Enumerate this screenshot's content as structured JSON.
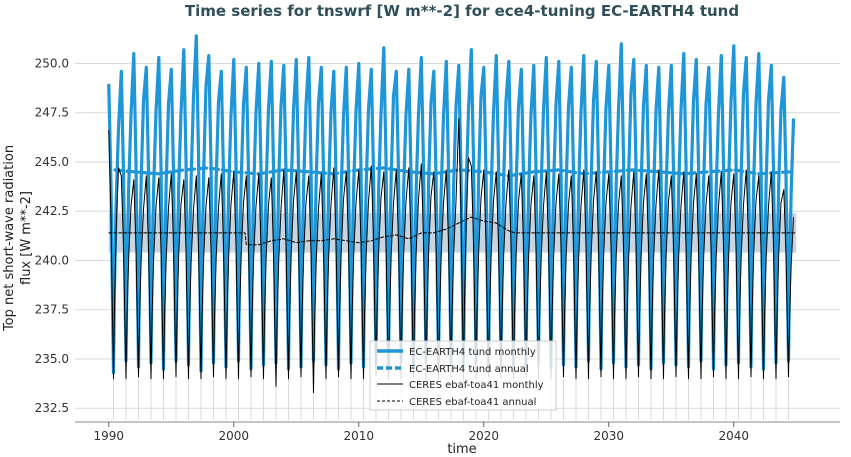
{
  "chart_data": {
    "type": "line",
    "title": "Time series for tnswrf [W m**-2] for ece4-tuning EC-EARTH4 tund",
    "xlabel": "time",
    "ylabel_lines": [
      "Top net short-wave radiation",
      "flux [W m**-2]"
    ],
    "xlim": [
      1987.3,
      2048.5
    ],
    "ylim": [
      231.8,
      251.7
    ],
    "x_ticks": [
      1990,
      2000,
      2010,
      2020,
      2030,
      2040
    ],
    "x_tick_labels": [
      "1990",
      "2000",
      "2010",
      "2020",
      "2030",
      "2040"
    ],
    "y_ticks": [
      232.5,
      235.0,
      237.5,
      240.0,
      242.5,
      245.0,
      247.5,
      250.0
    ],
    "y_tick_labels": [
      "232.5",
      "235.0",
      "237.5",
      "240.0",
      "242.5",
      "245.0",
      "247.5",
      "250.0"
    ],
    "grid": "horizontal",
    "legend_position": "bottom-center",
    "colors": {
      "model": "#1f96d8",
      "obs": "#000000",
      "band": "#b7c6d3",
      "grid": "#d7dadd",
      "title": "#2f4f5a"
    },
    "series": [
      {
        "name": "EC-EARTH4 tund monthly",
        "style": "thick-solid",
        "x_start": 1990.0,
        "x_end": 2045.0,
        "seasonal_cycle": {
          "period_years": 1,
          "annual_peaks": [
            248.9,
            249.6,
            250.5,
            249.8,
            250.3,
            249.7,
            250.7,
            251.4,
            250.4,
            249.6,
            250.2,
            249.8,
            250.0,
            250.1,
            249.9,
            250.2,
            250.3,
            249.8,
            249.6,
            249.8,
            250.0,
            249.7,
            250.8,
            249.6,
            249.7,
            250.3,
            249.6,
            250.1,
            249.9,
            250.7,
            249.8,
            250.4,
            250.1,
            249.7,
            249.9,
            250.3,
            250.1,
            249.8,
            250.4,
            250.1,
            249.9,
            251.0,
            250.2,
            249.9,
            249.8,
            249.9,
            250.5,
            250.2,
            249.8,
            250.4,
            250.9,
            250.3,
            250.5,
            249.9,
            249.3
          ],
          "annual_troughs": [
            234.3,
            234.9,
            234.6,
            234.8,
            234.5,
            234.9,
            234.7,
            234.4,
            234.8,
            234.6,
            234.9,
            234.5,
            234.7,
            234.8,
            234.5,
            234.6,
            234.9,
            234.7,
            234.5,
            234.8,
            234.6,
            234.7,
            234.5,
            234.9,
            234.6,
            234.8,
            234.5,
            234.7,
            234.6,
            234.8,
            234.5,
            234.9,
            234.7,
            234.6,
            234.8,
            234.5,
            234.7,
            234.6,
            234.9,
            234.5,
            234.8,
            234.6,
            234.7,
            234.5,
            234.8,
            234.7,
            234.6,
            234.9,
            234.5,
            234.7,
            234.8,
            234.6,
            234.5,
            234.8,
            234.9
          ]
        }
      },
      {
        "name": "EC-EARTH4 tund annual",
        "style": "thick-dashed",
        "x": [
          1990.5,
          1992,
          1994,
          1996,
          1998,
          2000,
          2002,
          2004,
          2006,
          2008,
          2010,
          2012,
          2014,
          2016,
          2018,
          2020,
          2022,
          2024,
          2026,
          2028,
          2030,
          2032,
          2034,
          2036,
          2038,
          2040,
          2042,
          2044.5
        ],
        "y": [
          244.6,
          244.5,
          244.4,
          244.6,
          244.7,
          244.5,
          244.4,
          244.6,
          244.5,
          244.4,
          244.6,
          244.7,
          244.5,
          244.4,
          244.6,
          244.5,
          244.3,
          244.5,
          244.6,
          244.4,
          244.5,
          244.6,
          244.5,
          244.4,
          244.5,
          244.6,
          244.4,
          244.5
        ]
      },
      {
        "name": "CERES ebaf-toa41 monthly",
        "style": "thin-solid",
        "x_start": 1990.0,
        "x_end": 2045.0,
        "seasonal_cycle": {
          "period_years": 1,
          "annual_peaks": [
            246.6,
            244.3,
            244.1,
            244.3,
            244.2,
            244.4,
            244.1,
            244.3,
            244.2,
            244.4,
            244.5,
            244.3,
            244.4,
            244.2,
            244.6,
            244.5,
            244.3,
            244.4,
            244.7,
            244.5,
            244.6,
            244.8,
            244.5,
            244.6,
            244.7,
            244.9,
            244.5,
            244.6,
            247.2,
            244.8,
            244.6,
            244.5,
            244.6,
            244.4,
            244.3,
            244.5,
            244.4,
            244.3,
            244.6,
            244.5,
            244.4,
            244.3,
            244.5,
            244.4,
            244.6,
            244.3,
            244.5,
            244.4,
            244.3,
            244.5,
            244.4,
            244.6,
            244.3,
            244.5,
            243.6
          ],
          "annual_troughs": [
            234.0,
            234.0,
            234.1,
            234.0,
            234.0,
            234.1,
            234.0,
            234.0,
            234.1,
            234.0,
            234.0,
            234.1,
            234.0,
            233.6,
            234.0,
            234.1,
            233.3,
            234.0,
            234.1,
            234.0,
            234.0,
            234.1,
            234.0,
            234.0,
            234.1,
            234.0,
            234.0,
            234.1,
            234.0,
            234.0,
            234.1,
            234.0,
            234.0,
            234.1,
            234.0,
            234.0,
            234.1,
            234.0,
            234.0,
            234.1,
            234.0,
            234.0,
            234.1,
            234.0,
            234.0,
            234.1,
            234.0,
            234.0,
            234.1,
            234.0,
            234.0,
            234.1,
            234.0,
            234.0,
            234.1
          ]
        }
      },
      {
        "name": "CERES ebaf-toa41 annual",
        "style": "thin-dashed",
        "x": [
          1990,
          2000.9,
          2001,
          2002,
          2003,
          2004,
          2005,
          2006,
          2007,
          2008,
          2009,
          2010,
          2011,
          2012,
          2013,
          2014,
          2015,
          2016,
          2017,
          2018,
          2019,
          2020,
          2021,
          2022,
          2022.5,
          2045
        ],
        "y": [
          241.4,
          241.4,
          240.8,
          240.8,
          241.0,
          241.1,
          240.9,
          241.0,
          241.0,
          241.1,
          241.0,
          240.9,
          241.0,
          241.2,
          241.3,
          241.1,
          241.4,
          241.4,
          241.6,
          241.9,
          242.2,
          242.0,
          241.9,
          241.5,
          241.4,
          241.4
        ]
      }
    ],
    "shaded_band": {
      "x": [
        1990,
        2045
      ],
      "y_low": 240.4,
      "y_high": 242.4
    },
    "obs_spread": {
      "y_low": 231.9
    }
  }
}
